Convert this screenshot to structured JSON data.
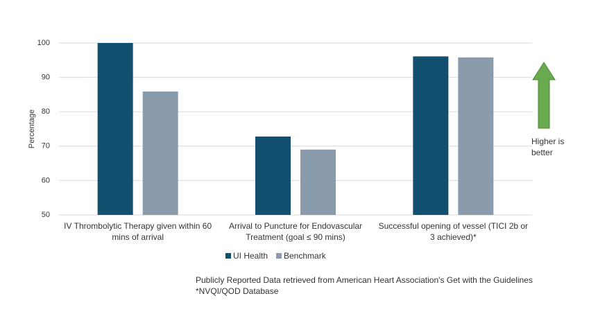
{
  "chart_data": {
    "type": "bar",
    "y_label": "Percentage",
    "categories": [
      "IV Thrombolytic Therapy given within 60 mins of arrival",
      "Arrival to Puncture for Endovascular Treatment (goal ≤ 90 mins)",
      "Successful opening of vessel (TICI 2b or 3 achieved)*"
    ],
    "series": [
      {
        "name": "UI Health",
        "color": "#13506f",
        "values": [
          100,
          72.8,
          96.1
        ]
      },
      {
        "name": "Benchmark",
        "color": "#8a9bab",
        "values": [
          85.9,
          69,
          95.8
        ]
      }
    ],
    "ylim": [
      50,
      100
    ],
    "yticks": [
      50,
      60,
      70,
      80,
      90,
      100
    ],
    "grid": true,
    "legend": "bottom",
    "annotation": "Higher is better",
    "notes": [
      "Publicly Reported Data retrieved from American Heart Association's Get with the Guidelines",
      "*NVQI/QOD Database"
    ]
  }
}
